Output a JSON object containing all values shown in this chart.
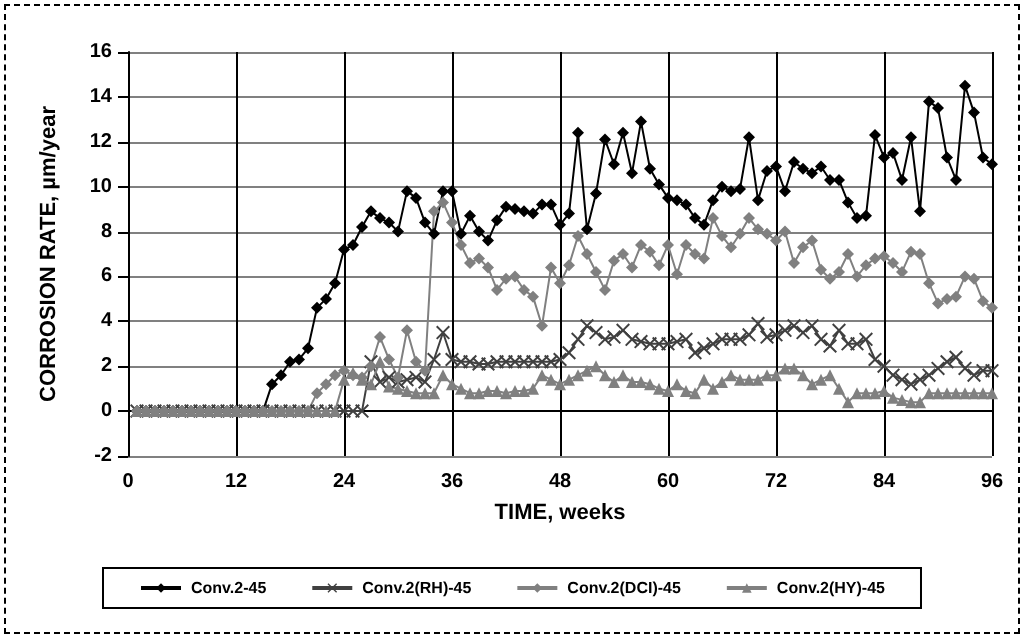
{
  "chart_data": {
    "type": "line",
    "xlabel": "TIME, weeks",
    "ylabel": "CORROSION RATE, µm/year",
    "x": [
      1,
      2,
      3,
      4,
      5,
      6,
      7,
      8,
      9,
      10,
      11,
      12,
      13,
      14,
      15,
      16,
      17,
      18,
      19,
      20,
      21,
      22,
      23,
      24,
      25,
      26,
      27,
      28,
      29,
      30,
      31,
      32,
      33,
      34,
      35,
      36,
      37,
      38,
      39,
      40,
      41,
      42,
      43,
      44,
      45,
      46,
      47,
      48,
      49,
      50,
      51,
      52,
      53,
      54,
      55,
      56,
      57,
      58,
      59,
      60,
      61,
      62,
      63,
      64,
      65,
      66,
      67,
      68,
      69,
      70,
      71,
      72,
      73,
      74,
      75,
      76,
      77,
      78,
      79,
      80,
      81,
      82,
      83,
      84,
      85,
      86,
      87,
      88,
      89,
      90,
      91,
      92,
      93,
      94,
      95,
      96
    ],
    "xlim": [
      0,
      96
    ],
    "xticks": [
      0,
      12,
      24,
      36,
      48,
      60,
      72,
      84,
      96
    ],
    "ylim": [
      -2,
      16
    ],
    "yticks": [
      -2,
      0,
      2,
      4,
      6,
      8,
      10,
      12,
      14,
      16
    ],
    "grid": true,
    "legend": "bottom",
    "line_style": "solid",
    "series": [
      {
        "name": "Conv.2-45",
        "color": "#000000",
        "marker": "diamond",
        "values": [
          0,
          0,
          0,
          0,
          0,
          0,
          0,
          0,
          0,
          0,
          0,
          0,
          0,
          0,
          0,
          1.2,
          1.6,
          2.2,
          2.3,
          2.8,
          4.6,
          5.0,
          5.7,
          7.2,
          7.4,
          8.2,
          8.9,
          8.6,
          8.4,
          8.0,
          9.8,
          9.5,
          8.4,
          7.9,
          9.8,
          9.8,
          7.9,
          8.7,
          8.0,
          7.6,
          8.5,
          9.1,
          9.0,
          8.9,
          8.8,
          9.2,
          9.2,
          8.3,
          8.8,
          12.4,
          8.1,
          9.7,
          12.1,
          11.0,
          12.4,
          10.6,
          12.9,
          10.8,
          10.1,
          9.5,
          9.4,
          9.2,
          8.6,
          8.3,
          9.4,
          10.0,
          9.8,
          9.9,
          12.2,
          9.4,
          10.7,
          10.9,
          9.8,
          11.1,
          10.8,
          10.6,
          10.9,
          10.3,
          10.3,
          9.3,
          8.6,
          8.7,
          12.3,
          11.3,
          11.5,
          10.3,
          12.2,
          8.9,
          13.8,
          13.5,
          11.3,
          10.3,
          14.5,
          13.3,
          11.3,
          11.0
        ]
      },
      {
        "name": "Conv.2(RH)-45",
        "color": "#404040",
        "marker": "cross",
        "values": [
          0,
          0,
          0,
          0,
          0,
          0,
          0,
          0,
          0,
          0,
          0,
          0,
          0,
          0,
          0,
          0,
          0,
          0,
          0,
          0,
          0,
          0,
          0,
          0,
          0,
          0,
          2.2,
          1.3,
          1.5,
          1.3,
          1.4,
          1.5,
          1.3,
          2.3,
          3.5,
          2.3,
          2.2,
          2.2,
          2.1,
          2.1,
          2.2,
          2.2,
          2.2,
          2.2,
          2.2,
          2.2,
          2.2,
          2.3,
          2.6,
          3.2,
          3.8,
          3.5,
          3.2,
          3.3,
          3.6,
          3.2,
          3.1,
          3.0,
          3.0,
          3.0,
          3.1,
          3.2,
          2.6,
          2.8,
          3.0,
          3.2,
          3.2,
          3.2,
          3.4,
          3.9,
          3.3,
          3.4,
          3.6,
          3.8,
          3.5,
          3.8,
          3.2,
          2.9,
          3.6,
          3.0,
          3.0,
          3.2,
          2.3,
          2.0,
          1.6,
          1.4,
          1.2,
          1.4,
          1.6,
          1.9,
          2.2,
          2.4,
          1.9,
          1.6,
          1.8,
          1.8
        ]
      },
      {
        "name": "Conv.2(DCI)-45",
        "color": "#808080",
        "marker": "diamond",
        "values": [
          0,
          0,
          0,
          0,
          0,
          0,
          0,
          0,
          0,
          0,
          0,
          0,
          0,
          0,
          0,
          0,
          0,
          0,
          0,
          0,
          0.8,
          1.2,
          1.6,
          1.8,
          1.6,
          1.5,
          2.0,
          3.3,
          2.3,
          1.5,
          3.6,
          2.2,
          1.8,
          8.9,
          9.3,
          8.4,
          7.4,
          6.6,
          6.8,
          6.4,
          5.4,
          5.9,
          6.0,
          5.4,
          5.1,
          3.8,
          6.4,
          5.7,
          6.5,
          7.8,
          7.0,
          6.2,
          5.4,
          6.7,
          7.0,
          6.4,
          7.4,
          7.1,
          6.5,
          7.4,
          6.1,
          7.4,
          7.0,
          6.8,
          8.6,
          7.8,
          7.3,
          7.9,
          8.6,
          8.1,
          7.9,
          7.6,
          8.0,
          6.6,
          7.3,
          7.6,
          6.3,
          5.9,
          6.2,
          7.0,
          6.0,
          6.5,
          6.8,
          6.9,
          6.6,
          6.2,
          7.1,
          7.0,
          5.7,
          4.8,
          5.0,
          5.1,
          6.0,
          5.9,
          4.9,
          4.6
        ]
      },
      {
        "name": "Conv.2(HY)-45",
        "color": "#808080",
        "marker": "triangle",
        "values": [
          0,
          0,
          0,
          0,
          0,
          0,
          0,
          0,
          0,
          0,
          0,
          0,
          0,
          0,
          0,
          0,
          0,
          0,
          0,
          0,
          0,
          0,
          0,
          1.4,
          1.7,
          1.4,
          1.2,
          2.2,
          1.1,
          1.0,
          0.9,
          0.8,
          0.8,
          0.8,
          1.6,
          1.2,
          1.0,
          0.8,
          0.8,
          0.9,
          0.9,
          0.8,
          0.9,
          0.9,
          1.0,
          1.6,
          1.4,
          1.2,
          1.4,
          1.6,
          1.8,
          2.0,
          1.6,
          1.3,
          1.6,
          1.3,
          1.3,
          1.2,
          1.0,
          0.9,
          1.2,
          0.9,
          0.8,
          1.4,
          1.0,
          1.3,
          1.6,
          1.4,
          1.4,
          1.4,
          1.6,
          1.6,
          1.9,
          1.9,
          1.6,
          1.2,
          1.4,
          1.6,
          1.0,
          0.4,
          0.8,
          0.8,
          0.8,
          0.9,
          0.6,
          0.5,
          0.4,
          0.4,
          0.8,
          0.8,
          0.8,
          0.8,
          0.8,
          0.8,
          0.8,
          0.8
        ]
      }
    ]
  }
}
